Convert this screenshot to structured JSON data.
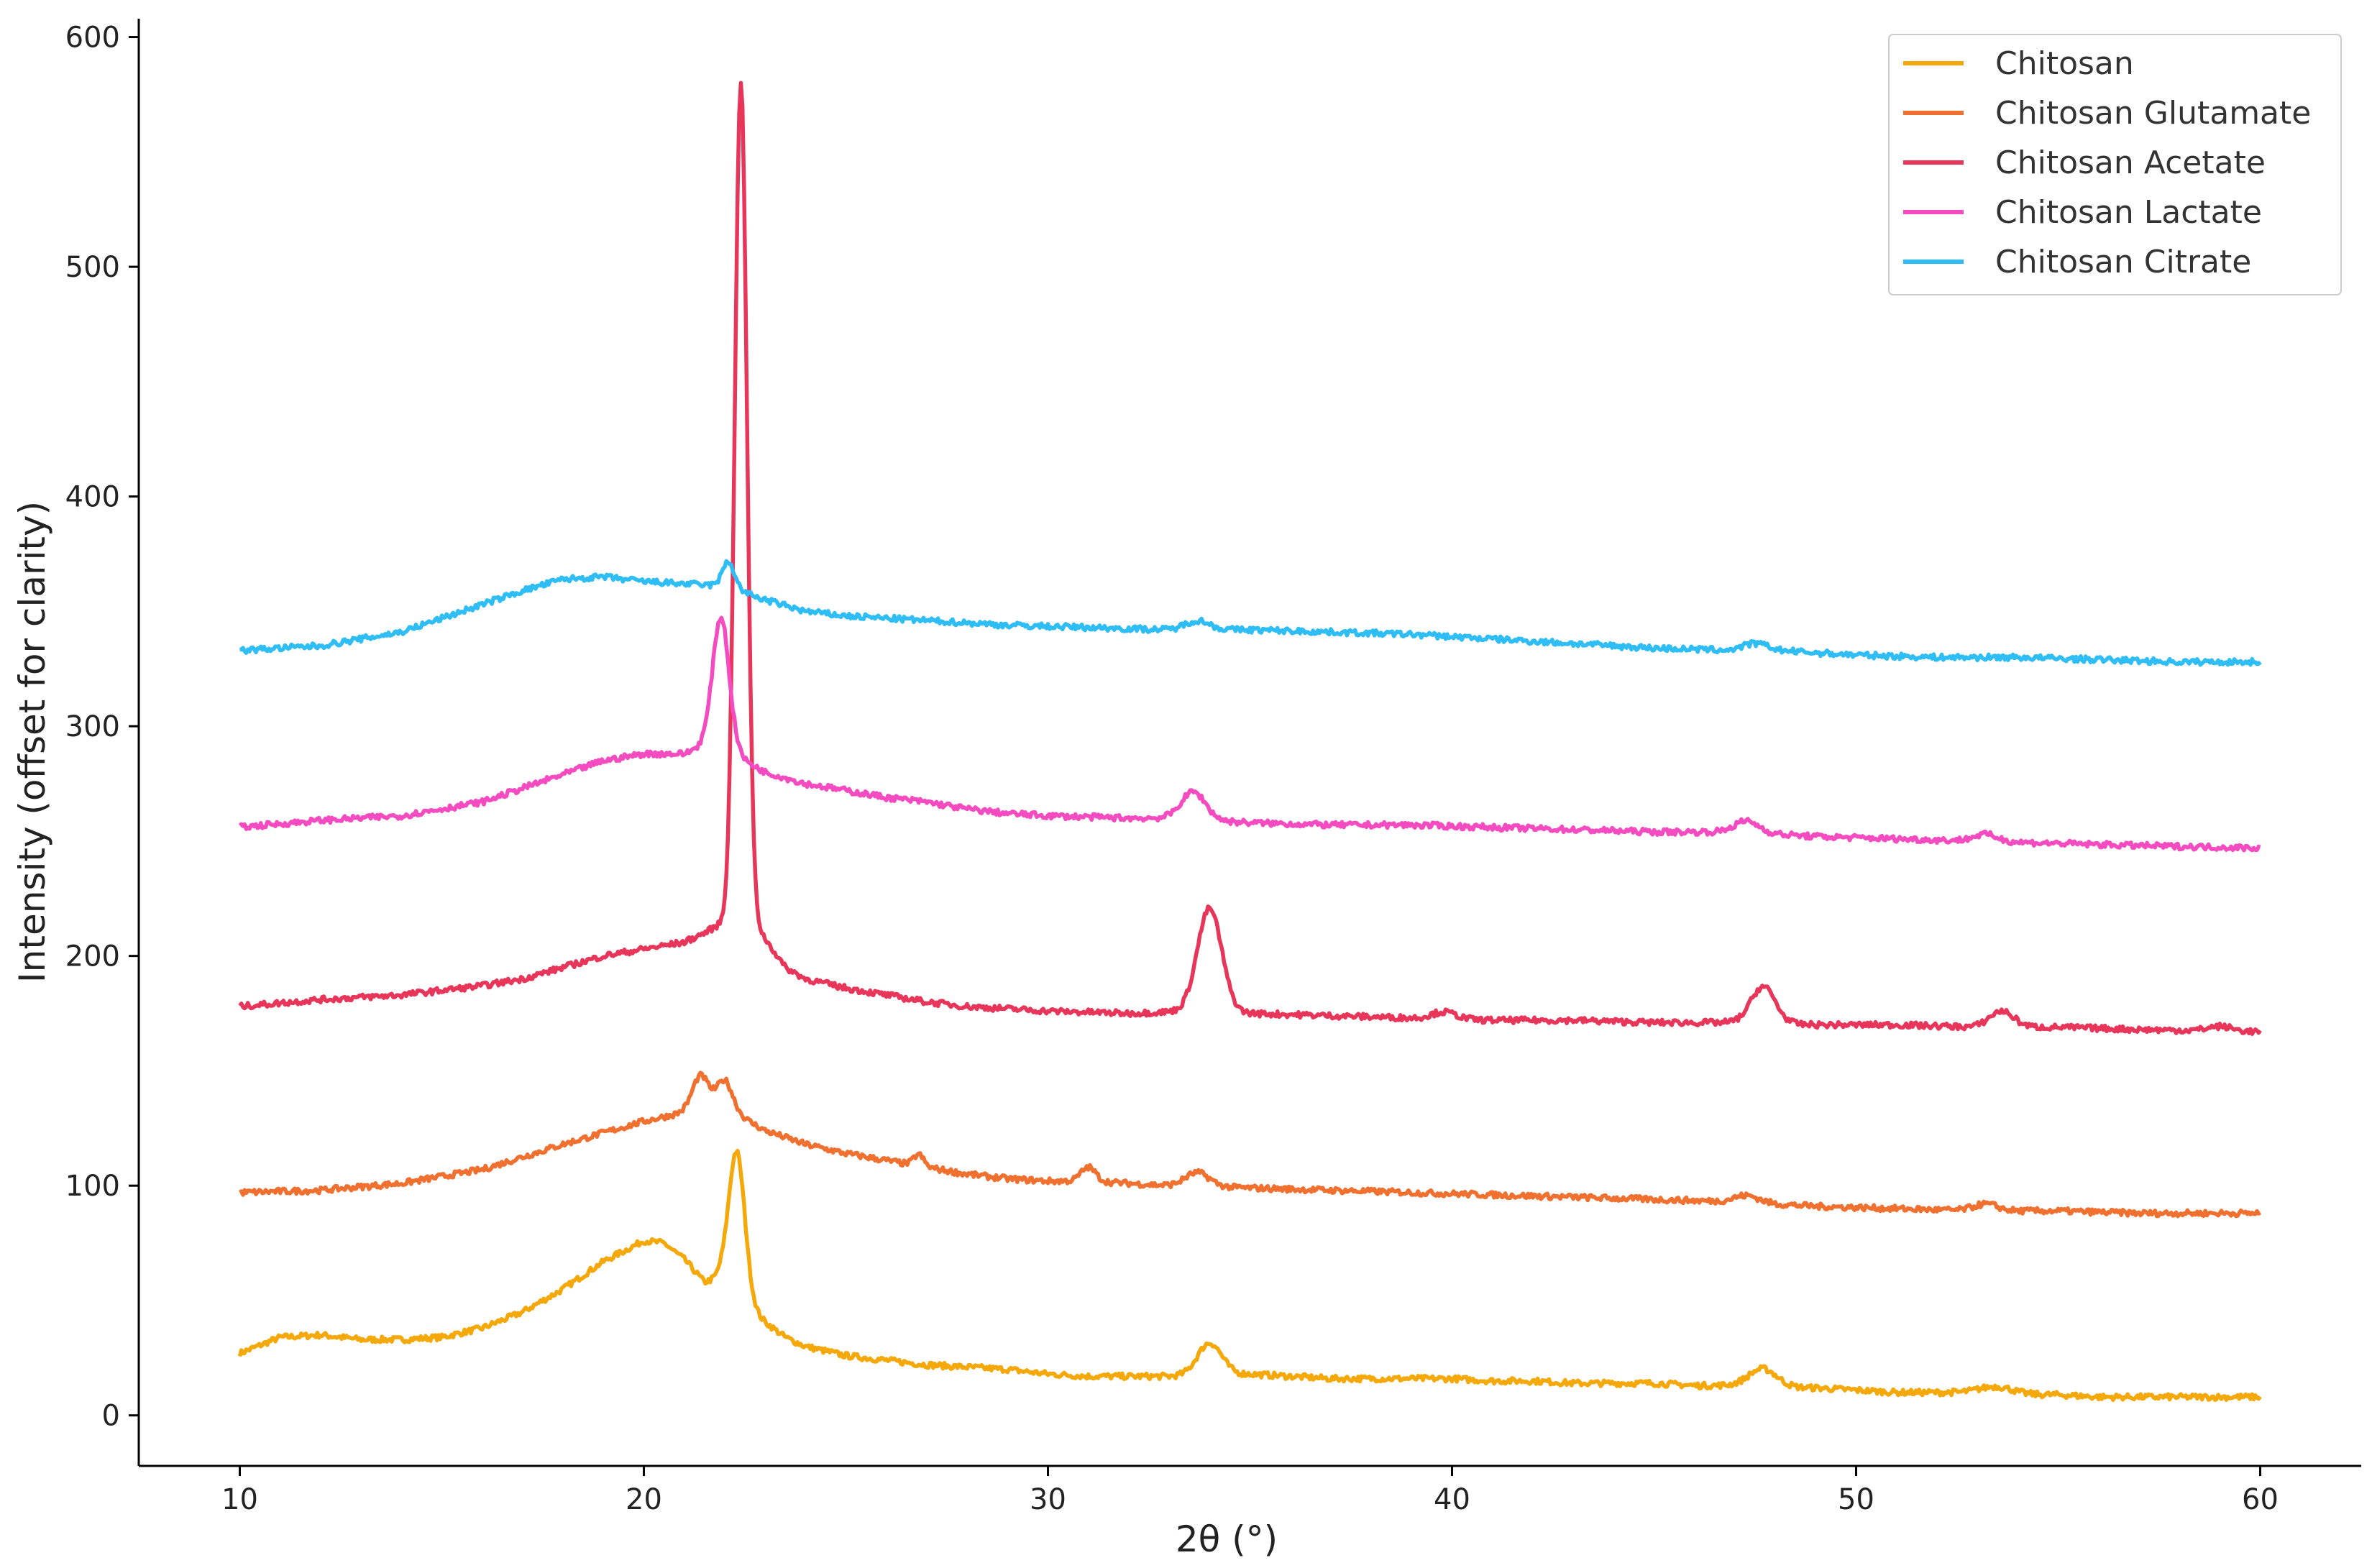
{
  "chart_data": {
    "type": "line",
    "title": "",
    "xlabel": "2θ (°)",
    "ylabel": "Intensity (offset for clarity)",
    "xlim": [
      7.5,
      62.5
    ],
    "ylim": [
      -22,
      608
    ],
    "xticks": [
      10,
      20,
      30,
      40,
      50,
      60
    ],
    "yticks": [
      0,
      100,
      200,
      300,
      400,
      500,
      600
    ],
    "grid": false,
    "legend_position": "top-right",
    "series": [
      {
        "name": "Chitosan",
        "color": "#f5a80a",
        "baseline": [
          [
            10,
            27
          ],
          [
            11,
            34
          ],
          [
            12,
            35
          ],
          [
            13,
            33
          ],
          [
            14,
            33
          ],
          [
            15,
            34
          ],
          [
            16,
            38
          ],
          [
            17,
            45
          ],
          [
            18,
            55
          ],
          [
            19,
            67
          ],
          [
            20,
            76
          ],
          [
            20.5,
            75
          ],
          [
            21,
            68
          ],
          [
            21.5,
            58
          ],
          [
            21.9,
            60
          ],
          [
            22.9,
            42
          ],
          [
            23.5,
            34
          ],
          [
            24,
            30
          ],
          [
            25,
            26
          ],
          [
            26,
            24
          ],
          [
            27,
            22
          ],
          [
            28,
            21
          ],
          [
            29,
            20
          ],
          [
            30,
            18
          ],
          [
            31,
            17
          ],
          [
            32,
            17
          ],
          [
            33,
            17
          ],
          [
            35,
            18
          ],
          [
            36,
            17
          ],
          [
            37,
            16
          ],
          [
            38,
            16
          ],
          [
            39,
            16
          ],
          [
            40,
            16
          ],
          [
            41,
            15
          ],
          [
            42,
            15
          ],
          [
            43,
            14
          ],
          [
            44,
            14
          ],
          [
            45,
            14
          ],
          [
            46,
            13
          ],
          [
            47,
            13
          ],
          [
            48,
            12
          ],
          [
            49,
            12
          ],
          [
            50,
            11
          ],
          [
            51,
            10
          ],
          [
            52,
            10
          ],
          [
            53,
            10
          ],
          [
            54,
            9
          ],
          [
            55,
            9
          ],
          [
            56,
            8
          ],
          [
            57,
            8
          ],
          [
            58,
            8
          ],
          [
            59,
            8
          ],
          [
            60,
            8
          ]
        ],
        "peaks": [
          [
            22.3,
            62,
            0.2
          ],
          [
            34,
            14,
            0.3
          ],
          [
            47.7,
            8,
            0.35
          ],
          [
            53.5,
            3,
            0.4
          ]
        ]
      },
      {
        "name": "Chitosan Glutamate",
        "color": "#f07030",
        "baseline": [
          [
            10,
            97
          ],
          [
            12,
            98
          ],
          [
            14,
            101
          ],
          [
            16,
            107
          ],
          [
            18,
            118
          ],
          [
            19,
            123
          ],
          [
            20,
            128
          ],
          [
            21,
            132
          ],
          [
            22,
            134
          ],
          [
            23,
            124
          ],
          [
            24,
            118
          ],
          [
            25,
            114
          ],
          [
            26,
            111
          ],
          [
            27,
            108
          ],
          [
            28,
            105
          ],
          [
            29,
            103
          ],
          [
            30,
            102
          ],
          [
            31,
            102
          ],
          [
            32,
            101
          ],
          [
            33,
            100
          ],
          [
            35,
            99
          ],
          [
            37,
            98
          ],
          [
            39,
            97
          ],
          [
            41,
            96
          ],
          [
            43,
            95
          ],
          [
            45,
            94
          ],
          [
            47,
            93
          ],
          [
            49,
            91
          ],
          [
            51,
            90
          ],
          [
            53,
            89
          ],
          [
            55,
            89
          ],
          [
            57,
            88
          ],
          [
            60,
            88
          ]
        ],
        "peaks": [
          [
            21.4,
            15,
            0.2
          ],
          [
            22,
            12,
            0.2
          ],
          [
            26.8,
            5,
            0.12
          ],
          [
            31,
            6,
            0.18
          ],
          [
            33.7,
            6,
            0.3
          ],
          [
            47.3,
            3,
            0.3
          ],
          [
            53.2,
            3,
            0.3
          ]
        ]
      },
      {
        "name": "Chitosan Acetate",
        "color": "#e8365a",
        "baseline": [
          [
            10,
            178
          ],
          [
            12,
            181
          ],
          [
            14,
            183
          ],
          [
            16,
            187
          ],
          [
            17,
            190
          ],
          [
            18,
            195
          ],
          [
            19,
            200
          ],
          [
            20,
            203
          ],
          [
            21,
            206
          ],
          [
            21.5,
            210
          ],
          [
            22,
            215
          ],
          [
            22.5,
            220
          ],
          [
            22.9,
            210
          ],
          [
            23.5,
            195
          ],
          [
            24,
            190
          ],
          [
            25,
            186
          ],
          [
            26,
            183
          ],
          [
            27,
            180
          ],
          [
            28,
            178
          ],
          [
            30,
            176
          ],
          [
            32,
            175
          ],
          [
            33.5,
            176
          ],
          [
            35,
            175
          ],
          [
            37,
            174
          ],
          [
            39,
            173
          ],
          [
            41,
            172
          ],
          [
            43,
            172
          ],
          [
            45,
            171
          ],
          [
            47,
            171
          ],
          [
            49,
            170
          ],
          [
            51,
            170
          ],
          [
            53,
            169
          ],
          [
            55,
            169
          ],
          [
            57,
            168
          ],
          [
            60,
            167
          ]
        ],
        "peaks": [
          [
            22.4,
            362,
            0.15
          ],
          [
            34,
            45,
            0.3
          ],
          [
            39.8,
            3,
            0.3
          ],
          [
            47.7,
            16,
            0.3
          ],
          [
            53.6,
            7,
            0.3
          ],
          [
            59,
            2,
            0.3
          ]
        ]
      },
      {
        "name": "Chitosan Lactate",
        "color": "#f54bc1",
        "baseline": [
          [
            10,
            256
          ],
          [
            12,
            259
          ],
          [
            14,
            261
          ],
          [
            16,
            267
          ],
          [
            18,
            279
          ],
          [
            19,
            285
          ],
          [
            20,
            288
          ],
          [
            21,
            288
          ],
          [
            21.5,
            292
          ],
          [
            22,
            295
          ],
          [
            22.5,
            285
          ],
          [
            23,
            280
          ],
          [
            24,
            275
          ],
          [
            25,
            272
          ],
          [
            26,
            269
          ],
          [
            27,
            267
          ],
          [
            28,
            264
          ],
          [
            29,
            262
          ],
          [
            30,
            261
          ],
          [
            32,
            260
          ],
          [
            33,
            260
          ],
          [
            35,
            258
          ],
          [
            37,
            257
          ],
          [
            39,
            257
          ],
          [
            41,
            256
          ],
          [
            43,
            255
          ],
          [
            45,
            254
          ],
          [
            47,
            254
          ],
          [
            49,
            252
          ],
          [
            51,
            251
          ],
          [
            53,
            250
          ],
          [
            55,
            249
          ],
          [
            57,
            248
          ],
          [
            60,
            247
          ]
        ],
        "peaks": [
          [
            21.9,
            53,
            0.2
          ],
          [
            33.6,
            12,
            0.3
          ],
          [
            47.3,
            5,
            0.3
          ],
          [
            53.2,
            3,
            0.3
          ]
        ]
      },
      {
        "name": "Chitosan Citrate",
        "color": "#2fbdf5",
        "baseline": [
          [
            10,
            333
          ],
          [
            12,
            335
          ],
          [
            14,
            341
          ],
          [
            16,
            353
          ],
          [
            17,
            359
          ],
          [
            18,
            364
          ],
          [
            19,
            365
          ],
          [
            20,
            363
          ],
          [
            21,
            362
          ],
          [
            22,
            361
          ],
          [
            23,
            355
          ],
          [
            24,
            350
          ],
          [
            25,
            348
          ],
          [
            27,
            346
          ],
          [
            29,
            344
          ],
          [
            31,
            343
          ],
          [
            33,
            342
          ],
          [
            35,
            342
          ],
          [
            37,
            341
          ],
          [
            39,
            340
          ],
          [
            41,
            338
          ],
          [
            43,
            336
          ],
          [
            45,
            334
          ],
          [
            47,
            333
          ],
          [
            48,
            333
          ],
          [
            50,
            331
          ],
          [
            52,
            330
          ],
          [
            54,
            330
          ],
          [
            56,
            329
          ],
          [
            58,
            328
          ],
          [
            60,
            328
          ]
        ],
        "peaks": [
          [
            22.1,
            11,
            0.15
          ],
          [
            33.7,
            4,
            0.3
          ],
          [
            47.5,
            3,
            0.3
          ]
        ]
      }
    ]
  }
}
